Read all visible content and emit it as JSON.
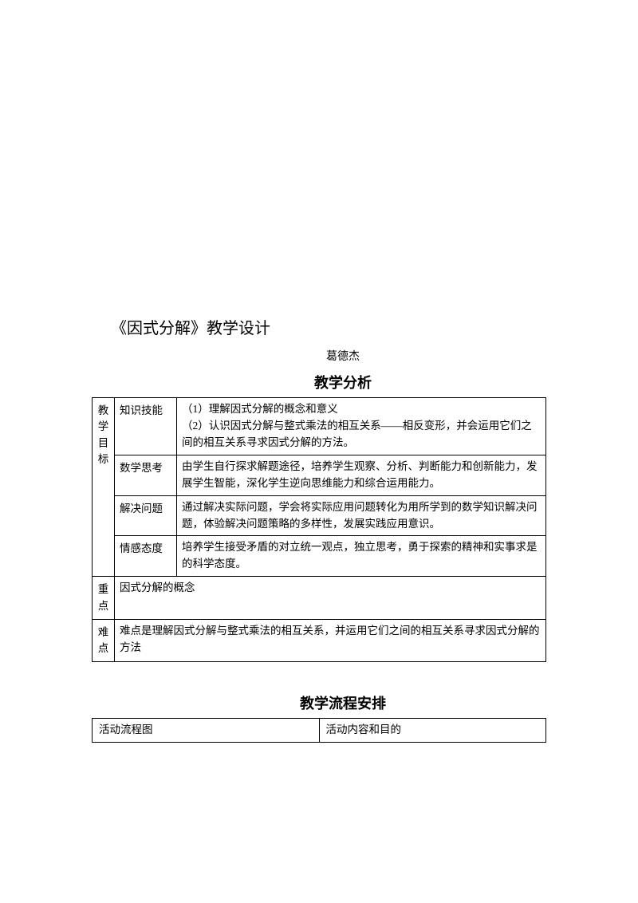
{
  "title": "《因式分解》教学设计",
  "author": "葛德杰",
  "analysis": {
    "heading": "教学分析",
    "objectivesLabel": "教学目标",
    "rows": [
      {
        "label": "知识技能",
        "content": "（1）理解因式分解的概念和意义\n（2）认识因式分解与整式乘法的相互关系——相反变形，并会运用它们之间的相互关系寻求因式分解的方法。"
      },
      {
        "label": "数学思考",
        "content": "由学生自行探求解题途径，培养学生观察、分析、判断能力和创新能力，发展学生智能，深化学生逆向思维能力和综合运用能力。"
      },
      {
        "label": "解决问题",
        "content": "通过解决实际问题，学会将实际应用问题转化为用所学到的数学知识解决问题，体验解决问题策略的多样性，发展实践应用意识。"
      },
      {
        "label": "情感态度",
        "content": "培养学生接受矛盾的对立统一观点，独立思考，勇于探索的精神和实事求是的科学态度。"
      }
    ],
    "keypoint": {
      "label": "重点",
      "content": "因式分解的概念"
    },
    "difficulty": {
      "label": "难点",
      "content": "难点是理解因式分解与整式乘法的相互关系，并运用它们之间的相互关系寻求因式分解的方法"
    }
  },
  "flow": {
    "heading": "教学流程安排",
    "col1": "活动流程图",
    "col2": "活动内容和目的"
  },
  "style": {
    "background_color": "#ffffff",
    "text_color": "#000000",
    "border_color": "#000000",
    "title_fontsize": 20,
    "body_fontsize": 13.5,
    "heading_fontsize": 18,
    "font_family": "SimSun"
  }
}
